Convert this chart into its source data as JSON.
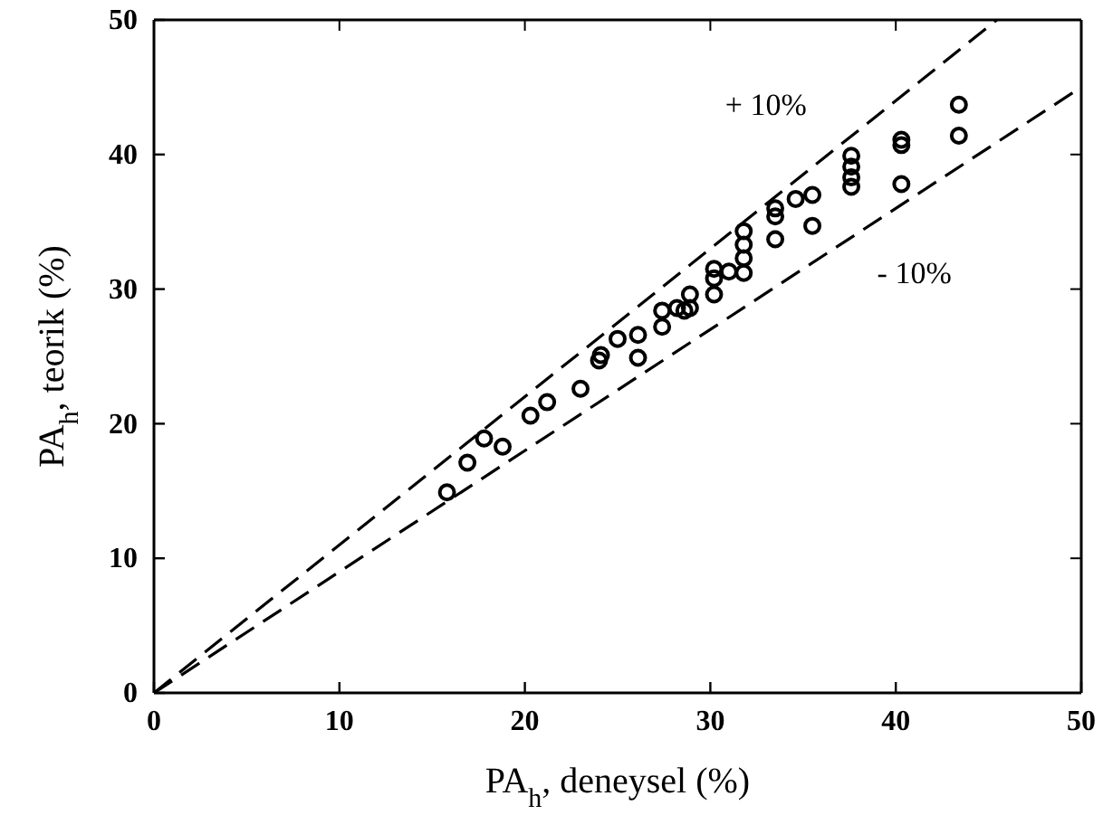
{
  "chart_data": {
    "type": "scatter",
    "xlabel": "PA$_{h}$, deneysel (%)",
    "ylabel": "PA$_{h}$, teorik (%)",
    "xlim": [
      0,
      50
    ],
    "ylim": [
      0,
      50
    ],
    "xticks": [
      0,
      10,
      20,
      30,
      40,
      50
    ],
    "yticks": [
      0,
      10,
      20,
      30,
      40,
      50
    ],
    "grid": false,
    "marker": "circle",
    "series": [
      {
        "color": "#000000",
        "x": [
          15.8,
          16.9,
          17.8,
          18.8,
          20.3,
          21.2,
          23,
          24,
          24.1,
          25,
          26.1,
          26.1,
          27.4,
          27.4,
          28.2,
          28.6,
          28.9,
          28.9,
          30.2,
          30.2,
          30.2,
          31,
          31.8,
          31.8,
          31.8,
          31.8,
          33.5,
          33.5,
          33.5,
          34.6,
          35.5,
          35.5,
          37.6,
          37.6,
          37.6,
          37.6,
          40.3,
          40.3,
          40.3,
          43.4,
          43.4
        ],
        "values": [
          14.9,
          17.1,
          18.9,
          18.3,
          20.6,
          21.6,
          22.6,
          24.7,
          25.1,
          26.3,
          24.9,
          26.6,
          27.2,
          28.4,
          28.6,
          28.4,
          29.6,
          28.6,
          29.6,
          30.8,
          31.5,
          31.3,
          31.2,
          32.3,
          33.3,
          34.3,
          33.7,
          35.4,
          36,
          36.7,
          34.7,
          37,
          37.6,
          38.3,
          39.1,
          39.9,
          37.8,
          40.7,
          41.1,
          41.4,
          43.7
        ]
      },
      {
        "type": "line",
        "color": "#000000",
        "line_style": "dashed",
        "marker": "none",
        "x": [
          0,
          45.45
        ],
        "values": [
          0,
          50
        ]
      },
      {
        "type": "line",
        "color": "#000000",
        "line_style": "dashed",
        "marker": "none",
        "x": [
          0,
          50
        ],
        "values": [
          0,
          45
        ]
      }
    ],
    "annotations": [
      "+ 10%",
      "- 10%"
    ]
  }
}
